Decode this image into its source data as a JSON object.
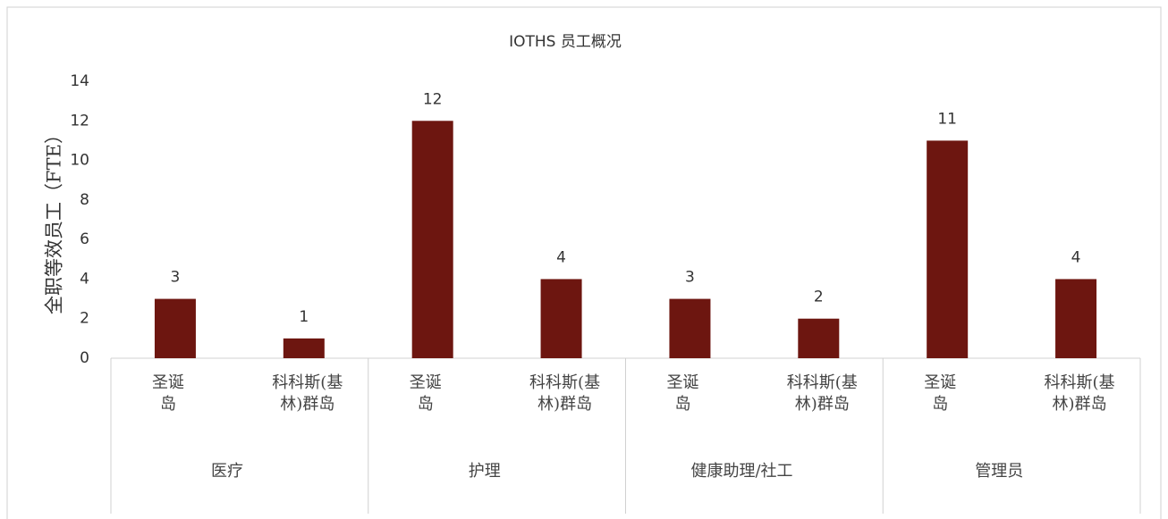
{
  "chart_data": {
    "type": "bar",
    "title": "IOTHS 员工概况",
    "ylabel": "全职等效员工（FTE）",
    "groups": [
      "医疗",
      "护理",
      "健康助理/社工",
      "管理员"
    ],
    "categories": [
      "圣诞岛",
      "科科斯(基林)群岛",
      "圣诞岛",
      "科科斯(基林)群岛",
      "圣诞岛",
      "科科斯(基林)群岛",
      "圣诞岛",
      "科科斯(基林)群岛"
    ],
    "values": [
      3,
      1,
      12,
      4,
      3,
      2,
      11,
      4
    ],
    "color": "#6d1610",
    "ylim": [
      0,
      14
    ],
    "yticks": [
      0,
      2,
      4,
      6,
      8,
      10,
      12,
      14
    ],
    "grid": false
  }
}
